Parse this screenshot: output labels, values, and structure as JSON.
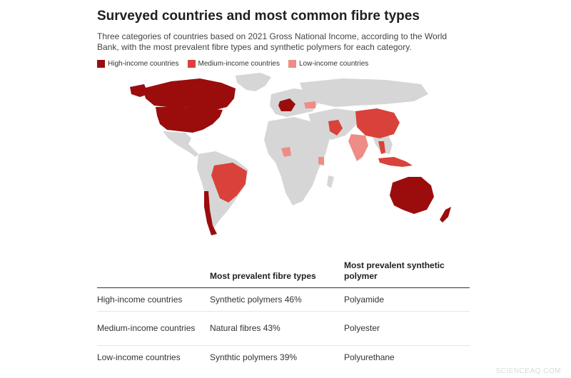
{
  "header": {
    "title": "Surveyed countries and most common fibre types",
    "subtitle": "Three categories of countries based on 2021 Gross National Income, according to the World Bank, with the most prevalent fibre types and synthetic polymers for each category."
  },
  "legend": [
    {
      "label": "High-income countries",
      "color": "#9b0d0d"
    },
    {
      "label": "Medium-income countries",
      "color": "#d8423a"
    },
    {
      "label": "Low-income countries",
      "color": "#ee8c86"
    }
  ],
  "map": {
    "base_color": "#d6d6d6",
    "ocean_color": "#ffffff"
  },
  "table": {
    "headers": [
      "",
      "Most prevalent fibre types",
      "Most prevalent synthetic polymer"
    ],
    "rows": [
      [
        "High-income countries",
        "Synthetic polymers 46%",
        "Polyamide"
      ],
      [
        "Medium-income countries",
        "Natural fibres 43%",
        "Polyester"
      ],
      [
        "Low-income countries",
        "Synthtic polymers 39%",
        "Polyurethane"
      ]
    ]
  },
  "watermark": "SCIENCEAQ.COM"
}
